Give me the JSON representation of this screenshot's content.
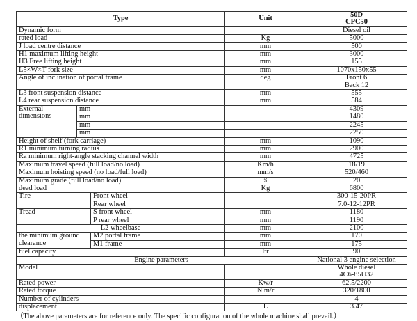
{
  "header": {
    "type": "Type",
    "unit": "Unit",
    "model_line1": "50D",
    "model_line2": "CPC50"
  },
  "rows": {
    "dynamic_form": {
      "label": "Dynamic form",
      "unit": "",
      "value": "Diesel oil"
    },
    "rated_load": {
      "label": "rated load",
      "unit": "Kg",
      "value": "5000"
    },
    "load_centre": {
      "label": "J load centre distance",
      "unit": "mm",
      "value": "500"
    },
    "max_lift": {
      "label": "H1 maximum lifting height",
      "unit": "mm",
      "value": "3000"
    },
    "free_lift": {
      "label": "H3 Free lifting height",
      "unit": "mm",
      "value": "155"
    },
    "fork_size": {
      "label": "L5×W×T fork size",
      "unit": "mm",
      "value": "1070x150x55"
    },
    "inclination": {
      "label": "Angle of inclination of portal frame",
      "unit": "deg",
      "value1": "Front 6",
      "value2": "Back 12"
    },
    "front_susp": {
      "label": "L3 front suspension distance",
      "unit": "mm",
      "value": "555"
    },
    "rear_susp": {
      "label": "L4 rear suspension distance",
      "unit": "mm",
      "value": "584"
    },
    "external": {
      "label": "External dimensions",
      "items": [
        {
          "unit": "mm",
          "value": "4309"
        },
        {
          "unit": "mm",
          "value": "1480"
        },
        {
          "unit": "mm",
          "value": "2245"
        },
        {
          "unit": "mm",
          "value": "2250"
        }
      ]
    },
    "shelf_height": {
      "label": "Height of shelf (fork carriage)",
      "unit": "mm",
      "value": "1090"
    },
    "turning_radius": {
      "label": "R1 minimum turning radius",
      "unit": "mm",
      "value": "2900"
    },
    "channel_width": {
      "label": "Ra minimum right-angle stacking channel width",
      "unit": "mm",
      "value": "4725"
    },
    "travel_speed": {
      "label": "Maximum travel speed (full load/no load)",
      "unit": "Km/h",
      "value": "18/19"
    },
    "hoist_speed": {
      "label": "Maximum hoisting speed (no load/full load)",
      "unit": "mm/s",
      "value": "520/460"
    },
    "max_grade": {
      "label": "Maximum grade (full load/no load)",
      "unit": "%",
      "value": "20"
    },
    "dead_load": {
      "label": "dead load",
      "unit": "Kg",
      "value": "6800"
    },
    "tire": {
      "label": "Tire",
      "front": {
        "label": "Front wheel",
        "unit": "",
        "value": "300-15-20PR"
      },
      "rear": {
        "label": "Rear wheel",
        "unit": "",
        "value": "7.0-12-12PR"
      }
    },
    "tread": {
      "label": "Tread",
      "front": {
        "label": "S front wheel",
        "unit": "mm",
        "value": "1180"
      },
      "rear": {
        "label": "P rear wheel",
        "unit": "mm",
        "value": "1190"
      }
    },
    "wheelbase": {
      "label": "L2 wheelbase",
      "unit": "mm",
      "value": "2100"
    },
    "clearance": {
      "label": "the minimum ground clearance",
      "portal": {
        "label": "M2 portal frame",
        "unit": "mm",
        "value": "170"
      },
      "frame": {
        "label": "M1 frame",
        "unit": "mm",
        "value": "175"
      }
    },
    "fuel": {
      "label": "fuel capacity",
      "unit": "ltr",
      "value": "90"
    },
    "engine": {
      "label": "Engine parameters",
      "value": "National 3 engine selection"
    },
    "model": {
      "label": "Model",
      "unit": "",
      "value1": "Whole diesel",
      "value2": "4C6-85U32"
    },
    "power": {
      "label": "Rated power",
      "unit": "Kw/r",
      "value": "62.5/2200"
    },
    "torque": {
      "label": "Rated torque",
      "unit": "N.m/r",
      "value": "320/1800"
    },
    "cylinders": {
      "label": "Number of cylinders",
      "unit": "",
      "value": "4"
    },
    "displacement": {
      "label": "displacement",
      "unit": "L",
      "value": "3.47"
    }
  },
  "note": "（The above parameters are for reference only. The specific configuration of the whole machine shall prevail.）"
}
